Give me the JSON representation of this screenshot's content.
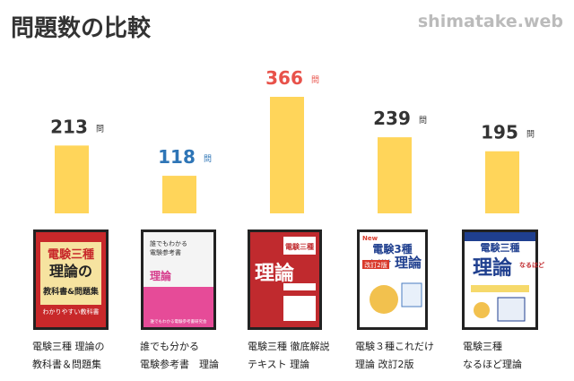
{
  "header": {
    "title": "問題数の比較",
    "site": "shimatake.web"
  },
  "colors": {
    "bar": "#FFD55A",
    "value_default": "#333333",
    "value_min": "#2E75B6",
    "value_max": "#E8524A",
    "title": "#333333",
    "site": "#BBBBBB"
  },
  "chart_data": {
    "type": "bar",
    "title": "問題数の比較",
    "unit": "問",
    "categories": [
      [
        "電験三種 理論の",
        "教科書＆問題集"
      ],
      [
        "誰でも分かる",
        "電験参考書　理論"
      ],
      [
        "電験三種 徹底解説",
        "テキスト 理論"
      ],
      [
        "電験３種これだけ",
        "理論 改訂2版"
      ],
      [
        "電験三種",
        "なるほど理論"
      ]
    ],
    "values": [
      213,
      118,
      366,
      239,
      195
    ],
    "highlight": [
      "default",
      "min",
      "max",
      "default",
      "default"
    ],
    "ylim": [
      0,
      366
    ]
  },
  "covers": [
    {
      "icon": "book-cover-1",
      "bg": "#C8282A",
      "lines": [
        "電験三種",
        "理論の",
        "教科書&問題集",
        "わかりやすい教科書"
      ]
    },
    {
      "icon": "book-cover-2",
      "bg": "#F4F4F4",
      "lines": [
        "誰でもわかる",
        "電験参考書",
        "理論",
        "誰でもわかる電験参考書研究会"
      ]
    },
    {
      "icon": "book-cover-3",
      "bg": "#C02A2E",
      "lines": [
        "電験三種",
        "理論"
      ]
    },
    {
      "icon": "book-cover-4",
      "bg": "#FFFFFF",
      "lines": [
        "New",
        "電験3種",
        "これだけ",
        "理論",
        "改訂2版"
      ]
    },
    {
      "icon": "book-cover-5",
      "bg": "#FFFFFF",
      "lines": [
        "電験三種",
        "理論",
        "なるほど"
      ]
    }
  ]
}
